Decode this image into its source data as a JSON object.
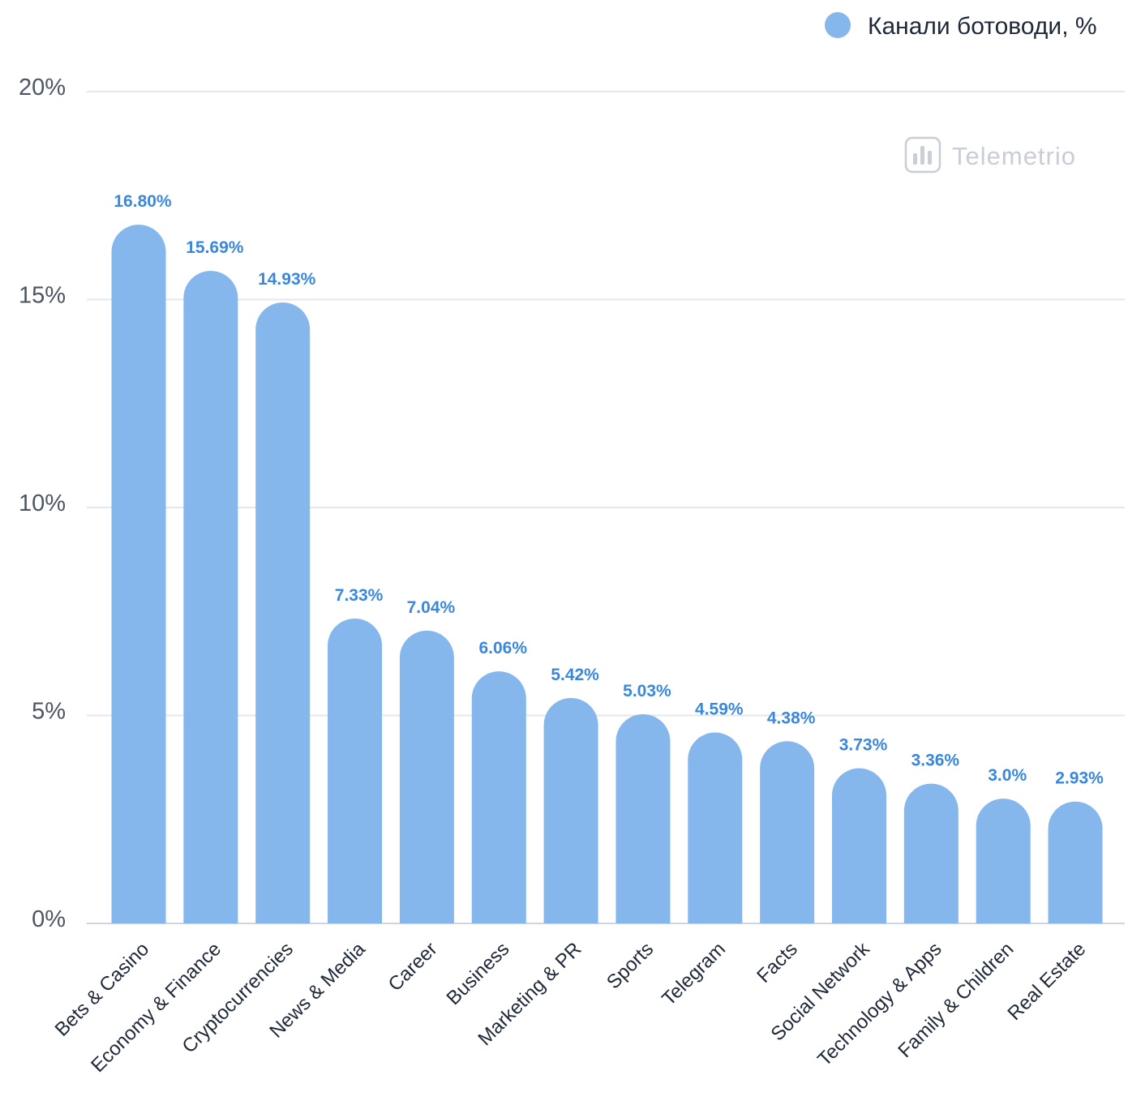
{
  "watermark": {
    "brand": "Telemetrio"
  },
  "colors": {
    "bar": "#86b7ec",
    "label": "#3a87dc",
    "grid": "#e5e7eb",
    "axis": "#d1d5db"
  },
  "chart_data": {
    "type": "bar",
    "legend": {
      "label": "Канали ботоводи, %",
      "position": "top-right"
    },
    "grid": true,
    "ylim": [
      0,
      20
    ],
    "y_ticks": [
      {
        "value": 0,
        "label": "0%"
      },
      {
        "value": 5,
        "label": "5%"
      },
      {
        "value": 10,
        "label": "10%"
      },
      {
        "value": 15,
        "label": "15%"
      },
      {
        "value": 20,
        "label": "20%"
      }
    ],
    "categories": [
      "Bets & Casino",
      "Economy & Finance",
      "Cryptocurrencies",
      "News & Media",
      "Career",
      "Business",
      "Marketing & PR",
      "Sports",
      "Telegram",
      "Facts",
      "Social Network",
      "Technology & Apps",
      "Family & Children",
      "Real Estate"
    ],
    "series": [
      {
        "name": "Канали ботоводи, %",
        "values": [
          16.8,
          15.69,
          14.93,
          7.33,
          7.04,
          6.06,
          5.42,
          5.03,
          4.59,
          4.38,
          3.73,
          3.36,
          3.0,
          2.93
        ],
        "labels": [
          "16.80%",
          "15.69%",
          "14.93%",
          "7.33%",
          "7.04%",
          "6.06%",
          "5.42%",
          "5.03%",
          "4.59%",
          "4.38%",
          "3.73%",
          "3.36%",
          "3.0%",
          "2.93%"
        ]
      }
    ]
  }
}
